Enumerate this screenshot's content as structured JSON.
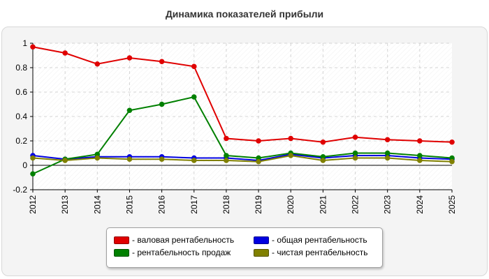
{
  "title": "Динамика показателей прибыли",
  "chart_data": {
    "type": "line",
    "title": "Динамика показателей прибыли",
    "xlabel": "",
    "ylabel": "",
    "categories": [
      "2012",
      "2013",
      "2014",
      "2015",
      "2016",
      "2017",
      "2018",
      "2019",
      "2020",
      "2021",
      "2022",
      "2023",
      "2024",
      "2025"
    ],
    "ylim": [
      -0.2,
      1
    ],
    "yticks": [
      "-0.2",
      "0",
      "0.2",
      "0.4",
      "0.6",
      "0.8",
      "1"
    ],
    "grid": true,
    "legend_position": "bottom",
    "series": [
      {
        "name": "- валовая рентабельность",
        "color": "#e00000",
        "values": [
          0.97,
          0.92,
          0.83,
          0.88,
          0.85,
          0.81,
          0.22,
          0.2,
          0.22,
          0.19,
          0.23,
          0.21,
          0.2,
          0.19
        ]
      },
      {
        "name": "- общая рентабельность",
        "color": "#0000e0",
        "values": [
          0.08,
          0.05,
          0.07,
          0.07,
          0.07,
          0.06,
          0.06,
          0.04,
          0.09,
          0.06,
          0.08,
          0.08,
          0.06,
          0.05
        ]
      },
      {
        "name": "- рентабельность продаж",
        "color": "#008000",
        "values": [
          -0.07,
          0.05,
          0.09,
          0.45,
          0.5,
          0.56,
          0.08,
          0.06,
          0.1,
          0.07,
          0.1,
          0.1,
          0.08,
          0.06
        ]
      },
      {
        "name": "- чистая рентабельность",
        "color": "#808000",
        "values": [
          0.06,
          0.04,
          0.06,
          0.05,
          0.05,
          0.04,
          0.04,
          0.03,
          0.08,
          0.04,
          0.06,
          0.06,
          0.04,
          0.03
        ]
      }
    ]
  },
  "legend_order": [
    0,
    1,
    2,
    3
  ]
}
